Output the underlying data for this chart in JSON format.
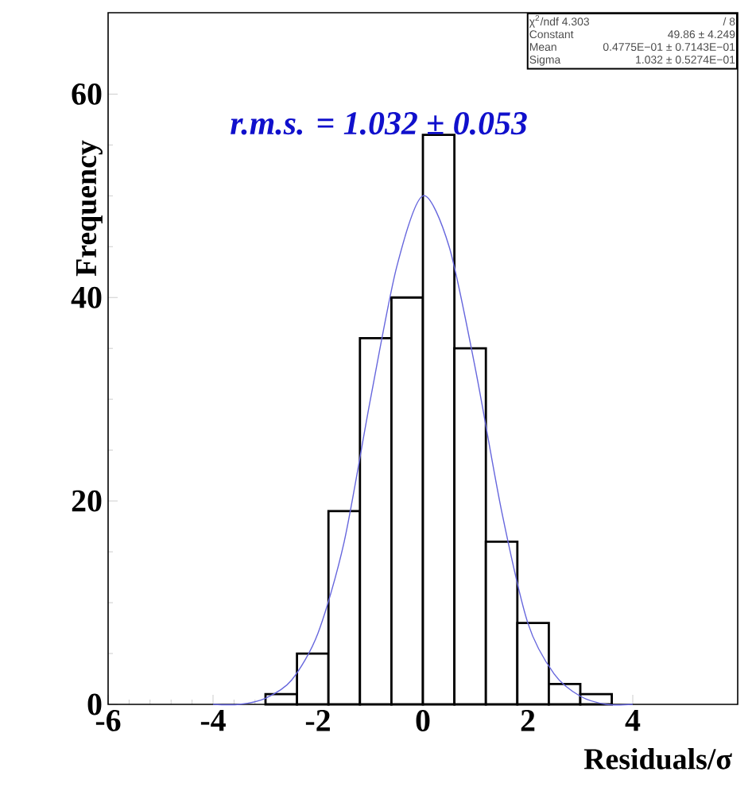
{
  "chart_data": {
    "type": "histogram",
    "xlabel": "Residuals/σ",
    "ylabel": "Frequency",
    "xlim": [
      -6,
      6
    ],
    "ylim": [
      0,
      68
    ],
    "xticks": [
      -6,
      -4,
      -2,
      0,
      2,
      4
    ],
    "yticks": [
      0,
      20,
      40,
      60
    ],
    "series": [
      {
        "color": "#000000",
        "bins": [
          -3.0,
          -2.4,
          -1.8,
          -1.2,
          -0.6,
          0,
          0.6,
          1.2,
          1.8,
          2.4,
          3.0,
          3.6
        ],
        "values": [
          1,
          5,
          19,
          36,
          40,
          56,
          35,
          16,
          8,
          2,
          1
        ]
      },
      {
        "type": "line",
        "color": "#6666dd",
        "x": [
          -4,
          -3.5,
          -3,
          -2.5,
          -2,
          -1.5,
          -1,
          -0.5,
          0,
          0.5,
          1,
          1.5,
          2,
          2.5,
          3,
          3.5,
          4
        ],
        "values": [
          0,
          0,
          0.6,
          2.4,
          7,
          16,
          30,
          43,
          50,
          45,
          33,
          19,
          8,
          3,
          0.8,
          0,
          0
        ]
      }
    ],
    "annotations": [
      "χ$^{2}$/ndf 4.303",
      "/  8",
      "Constant",
      "49.86 ±  4.249",
      "Mean",
      "0.4775E−01 ± 0.7143E−01",
      "Sigma",
      "1.032 ± 0.5274E−01",
      "r.m.s. = 1.032 ± 0.053"
    ]
  }
}
